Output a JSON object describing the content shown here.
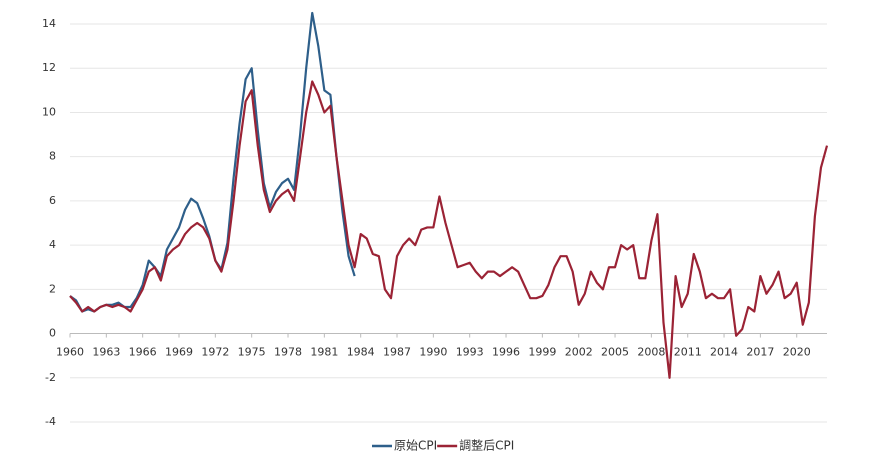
{
  "chart_data": {
    "type": "line",
    "x": [
      1960,
      1960.5,
      1961,
      1961.5,
      1962,
      1962.5,
      1963,
      1963.5,
      1964,
      1964.5,
      1965,
      1965.5,
      1966,
      1966.5,
      1967,
      1967.5,
      1968,
      1968.5,
      1969,
      1969.5,
      1970,
      1970.5,
      1971,
      1971.5,
      1972,
      1972.5,
      1973,
      1973.5,
      1974,
      1974.5,
      1975,
      1975.5,
      1976,
      1976.5,
      1977,
      1977.5,
      1978,
      1978.5,
      1979,
      1979.5,
      1980,
      1980.5,
      1981,
      1981.5,
      1982,
      1982.5,
      1983,
      1983.5,
      1984,
      1984.5,
      1985,
      1985.5,
      1986,
      1986.5,
      1987,
      1987.5,
      1988,
      1988.5,
      1989,
      1989.5,
      1990,
      1990.5,
      1991,
      1991.5,
      1992,
      1992.5,
      1993,
      1993.5,
      1994,
      1994.5,
      1995,
      1995.5,
      1996,
      1996.5,
      1997,
      1997.5,
      1998,
      1998.5,
      1999,
      1999.5,
      2000,
      2000.5,
      2001,
      2001.5,
      2002,
      2002.5,
      2003,
      2003.5,
      2004,
      2004.5,
      2005,
      2005.5,
      2006,
      2006.5,
      2007,
      2007.5,
      2008,
      2008.5,
      2009,
      2009.5,
      2010,
      2010.5,
      2011,
      2011.5,
      2012,
      2012.5,
      2013,
      2013.5,
      2014,
      2014.5,
      2015,
      2015.5,
      2016,
      2016.5,
      2017,
      2017.5,
      2018,
      2018.5,
      2019,
      2019.5,
      2020,
      2020.5,
      2021,
      2021.5,
      2022,
      2022.5
    ],
    "series": [
      {
        "name": "原始CPI",
        "color": "#2e5f8a",
        "values": [
          1.7,
          1.5,
          1.0,
          1.1,
          1.0,
          1.2,
          1.3,
          1.3,
          1.4,
          1.2,
          1.2,
          1.6,
          2.2,
          3.3,
          3.0,
          2.6,
          3.8,
          4.3,
          4.8,
          5.6,
          6.1,
          5.9,
          5.2,
          4.4,
          3.3,
          2.9,
          4.1,
          7.0,
          9.5,
          11.5,
          12.0,
          9.2,
          6.8,
          5.7,
          6.4,
          6.8,
          7.0,
          6.5,
          9.0,
          12.0,
          14.5,
          13.0,
          11.0,
          10.8,
          8.0,
          5.5,
          3.5,
          2.6,
          null,
          null,
          null,
          null,
          null,
          null,
          null,
          null,
          null,
          null,
          null,
          null,
          null,
          null,
          null,
          null,
          null,
          null,
          null,
          null,
          null,
          null,
          null,
          null,
          null,
          null,
          null,
          null,
          null,
          null,
          null,
          null,
          null,
          null,
          null,
          null,
          null,
          null,
          null,
          null,
          null,
          null,
          null,
          null,
          null,
          null,
          null,
          null,
          null,
          null,
          null,
          null,
          null,
          null,
          null,
          null,
          null,
          null,
          null,
          null,
          null,
          null,
          null,
          null,
          null,
          null,
          null,
          null,
          null,
          null,
          null,
          null,
          null,
          null,
          null,
          null,
          null,
          null
        ]
      },
      {
        "name": "調整后CPI",
        "color": "#9b2335",
        "values": [
          1.7,
          1.4,
          1.0,
          1.2,
          1.0,
          1.2,
          1.3,
          1.2,
          1.3,
          1.2,
          1.0,
          1.5,
          2.0,
          2.8,
          3.0,
          2.4,
          3.5,
          3.8,
          4.0,
          4.5,
          4.8,
          5.0,
          4.8,
          4.3,
          3.3,
          2.8,
          3.8,
          6.0,
          8.5,
          10.5,
          11.0,
          8.5,
          6.5,
          5.5,
          6.0,
          6.3,
          6.5,
          6.0,
          8.0,
          10.0,
          11.4,
          10.8,
          10.0,
          10.3,
          8.0,
          6.0,
          4.0,
          3.0,
          4.5,
          4.3,
          3.6,
          3.5,
          2.0,
          1.6,
          3.5,
          4.0,
          4.3,
          4.0,
          4.7,
          4.8,
          4.8,
          6.2,
          5.0,
          4.0,
          3.0,
          3.1,
          3.2,
          2.8,
          2.5,
          2.8,
          2.8,
          2.6,
          2.8,
          3.0,
          2.8,
          2.2,
          1.6,
          1.6,
          1.7,
          2.2,
          3.0,
          3.5,
          3.5,
          2.8,
          1.3,
          1.8,
          2.8,
          2.3,
          2.0,
          3.0,
          3.0,
          4.0,
          3.8,
          4.0,
          2.5,
          2.5,
          4.2,
          5.4,
          0.5,
          -2.0,
          2.6,
          1.2,
          1.8,
          3.6,
          2.8,
          1.6,
          1.8,
          1.6,
          1.6,
          2.0,
          -0.1,
          0.2,
          1.2,
          1.0,
          2.6,
          1.8,
          2.2,
          2.8,
          1.6,
          1.8,
          2.3,
          0.4,
          1.4,
          5.3,
          7.5,
          8.5
        ]
      }
    ],
    "xlim": [
      1960,
      2022.5
    ],
    "xticks": [
      1960,
      1963,
      1966,
      1969,
      1972,
      1975,
      1978,
      1981,
      1984,
      1987,
      1990,
      1993,
      1996,
      1999,
      2002,
      2005,
      2008,
      2011,
      2014,
      2017,
      2020
    ],
    "ylim": [
      -4,
      14
    ],
    "yticks": [
      -4,
      -2,
      0,
      2,
      4,
      6,
      8,
      10,
      12,
      14
    ],
    "grid": true,
    "legend": "bottom"
  }
}
